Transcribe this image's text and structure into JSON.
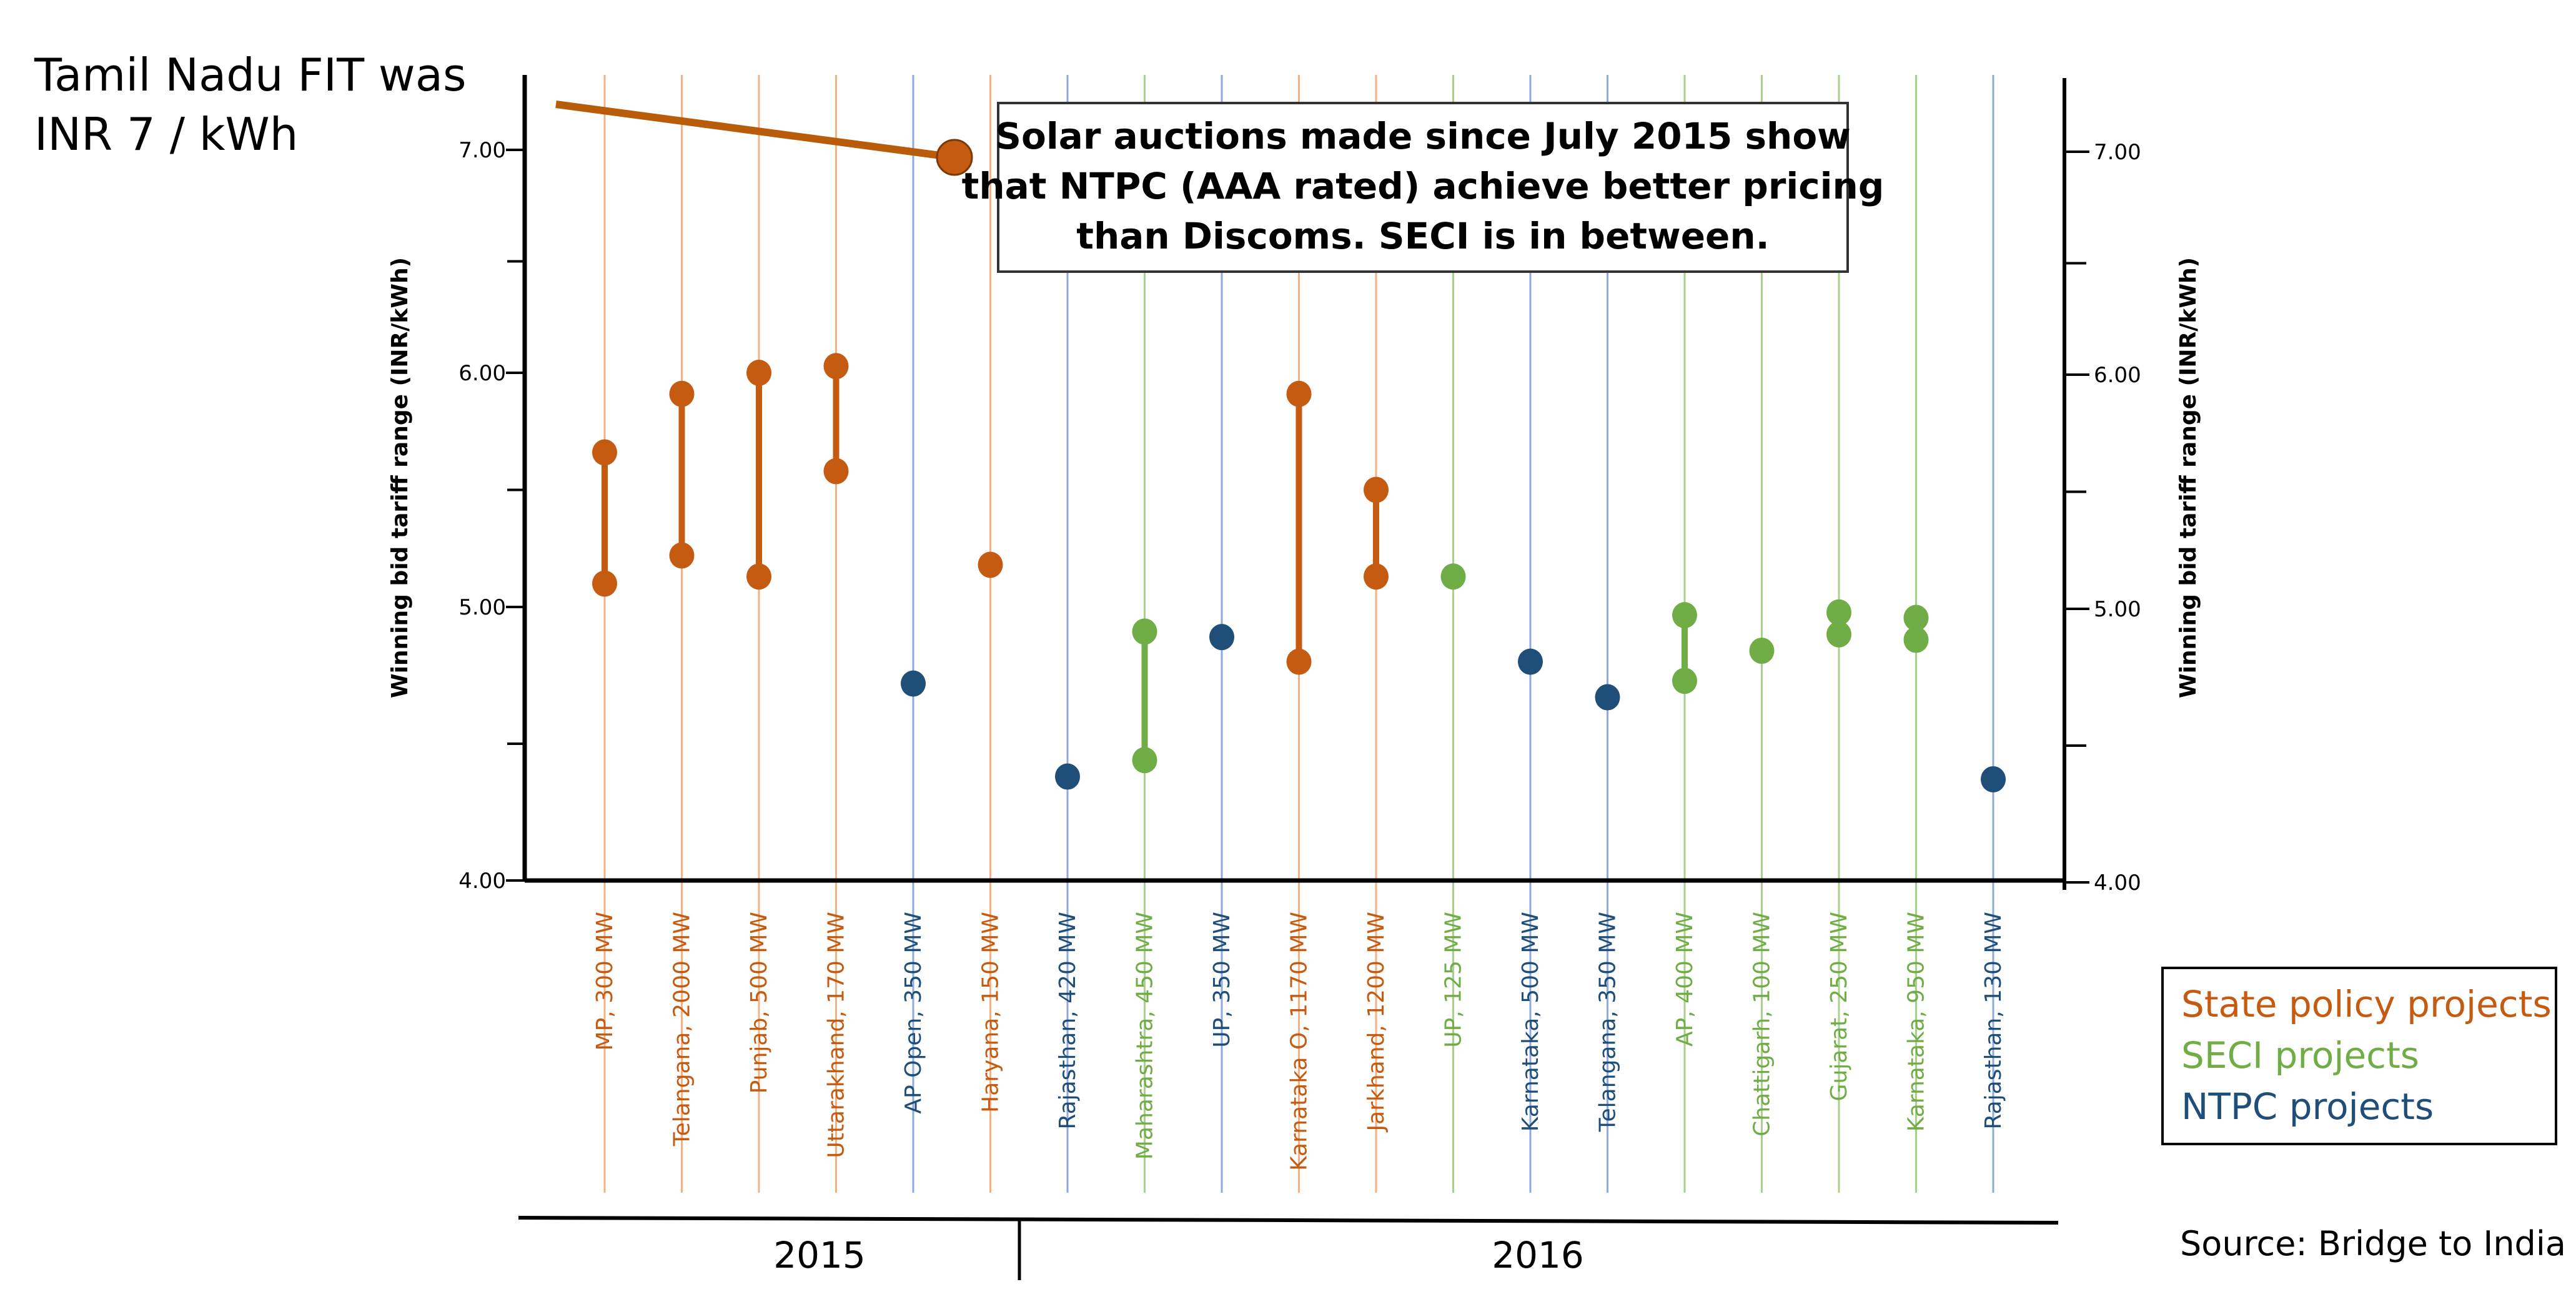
{
  "note": {
    "line1": "Tamil Nadu FIT was",
    "line2": "INR 7 / kWh",
    "fit_value": 7.0
  },
  "callout": {
    "line1": "Solar auctions made since July 2015 show",
    "line2": "that NTPC (AAA rated) achieve better pricing",
    "line3": "than Discoms. SECI is in between."
  },
  "source": "Source: Bridge to India",
  "colors": {
    "state": "#c55a11",
    "seci": "#70ad47",
    "ntpc": "#1f4e79",
    "state_line": "#f4b183",
    "seci_line": "#a9d18e",
    "ntpc_line": "#8faadc",
    "fit_line": "#b85c0a"
  },
  "chart_data": {
    "type": "range",
    "title": "",
    "ylabel": "Winning bid tariff range (INR/kWh)",
    "xlabel": "",
    "ylim": [
      4.0,
      7.3
    ],
    "yticks": [
      4.0,
      5.0,
      6.0,
      7.0
    ],
    "yticks_labels": [
      "4.00",
      "5.00",
      "6.00",
      "7.00"
    ],
    "minor_ticks": [
      4.5,
      5.5,
      6.5
    ],
    "groups": [
      "2015",
      "2016"
    ],
    "group_split_after": 5,
    "legend": [
      {
        "label": "State policy projects",
        "category": "state"
      },
      {
        "label": "SECI projects",
        "category": "seci"
      },
      {
        "label": "NTPC projects",
        "category": "ntpc"
      }
    ],
    "projects": [
      {
        "label": "MP, 300 MW",
        "category": "state",
        "low": 5.1,
        "high": 5.66
      },
      {
        "label": "Telangana, 2000 MW",
        "category": "state",
        "low": 5.22,
        "high": 5.91
      },
      {
        "label": "Punjab, 500 MW",
        "category": "state",
        "low": 5.13,
        "high": 6.0
      },
      {
        "label": "Uttarakhand, 170 MW",
        "category": "state",
        "low": 5.58,
        "high": 6.03
      },
      {
        "label": "AP Open, 350 MW",
        "category": "ntpc",
        "low": 4.72,
        "high": 4.72
      },
      {
        "label": "Haryana, 150 MW",
        "category": "state",
        "low": 5.18,
        "high": 5.18
      },
      {
        "label": "Rajasthan, 420 MW",
        "category": "ntpc",
        "low": 4.38,
        "high": 4.38
      },
      {
        "label": "Maharashtra, 450 MW",
        "category": "seci",
        "low": 4.44,
        "high": 4.91
      },
      {
        "label": "UP, 350 MW",
        "category": "ntpc",
        "low": 4.89,
        "high": 4.89
      },
      {
        "label": "Karnataka O, 1170 MW",
        "category": "state",
        "low": 4.8,
        "high": 5.91
      },
      {
        "label": "Jarkhand, 1200 MW",
        "category": "state",
        "low": 5.13,
        "high": 5.5
      },
      {
        "label": "UP, 125 MW",
        "category": "seci",
        "low": 5.13,
        "high": 5.13
      },
      {
        "label": "Karnataka, 500 MW",
        "category": "ntpc",
        "low": 4.8,
        "high": 4.8
      },
      {
        "label": "Telangana, 350 MW",
        "category": "ntpc",
        "low": 4.67,
        "high": 4.67
      },
      {
        "label": "AP, 400 MW",
        "category": "seci",
        "low": 4.73,
        "high": 4.97
      },
      {
        "label": "Chattigarh, 100 MW",
        "category": "seci",
        "low": 4.84,
        "high": 4.84
      },
      {
        "label": "Gujarat, 250 MW",
        "category": "seci",
        "low": 4.9,
        "high": 4.98
      },
      {
        "label": "Karnataka, 950 MW",
        "category": "seci",
        "low": 4.88,
        "high": 4.96
      },
      {
        "label": "Rajasthan, 130 MW",
        "category": "ntpc",
        "low": 4.37,
        "high": 4.37
      }
    ]
  }
}
